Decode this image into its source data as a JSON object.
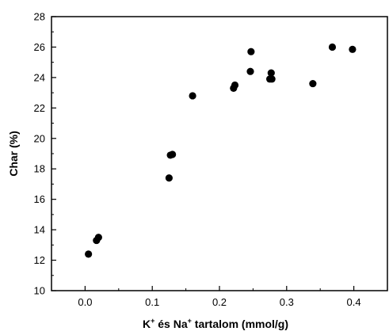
{
  "chart_data": {
    "type": "scatter",
    "xlabel": {
      "parts": [
        "K",
        "+",
        " és Na",
        "+",
        " tartalom (mmol/g)"
      ]
    },
    "ylabel": "Char (%)",
    "xlim": [
      -0.05,
      0.45
    ],
    "ylim": [
      10,
      28
    ],
    "x_ticks": [
      "0.0",
      "0.1",
      "0.2",
      "0.3",
      "0.4"
    ],
    "y_ticks": [
      "10",
      "12",
      "14",
      "16",
      "18",
      "20",
      "22",
      "24",
      "26",
      "28"
    ],
    "grid": false,
    "marker_color": "#000000",
    "points": [
      {
        "x": 0.005,
        "y": 12.4
      },
      {
        "x": 0.017,
        "y": 13.3
      },
      {
        "x": 0.02,
        "y": 13.5
      },
      {
        "x": 0.125,
        "y": 17.4
      },
      {
        "x": 0.127,
        "y": 18.9
      },
      {
        "x": 0.13,
        "y": 18.95
      },
      {
        "x": 0.16,
        "y": 22.8
      },
      {
        "x": 0.221,
        "y": 23.3
      },
      {
        "x": 0.223,
        "y": 23.5
      },
      {
        "x": 0.246,
        "y": 24.4
      },
      {
        "x": 0.247,
        "y": 25.7
      },
      {
        "x": 0.275,
        "y": 23.9
      },
      {
        "x": 0.277,
        "y": 24.3
      },
      {
        "x": 0.278,
        "y": 23.9
      },
      {
        "x": 0.339,
        "y": 23.6
      },
      {
        "x": 0.368,
        "y": 26.0
      },
      {
        "x": 0.398,
        "y": 25.85
      }
    ]
  }
}
